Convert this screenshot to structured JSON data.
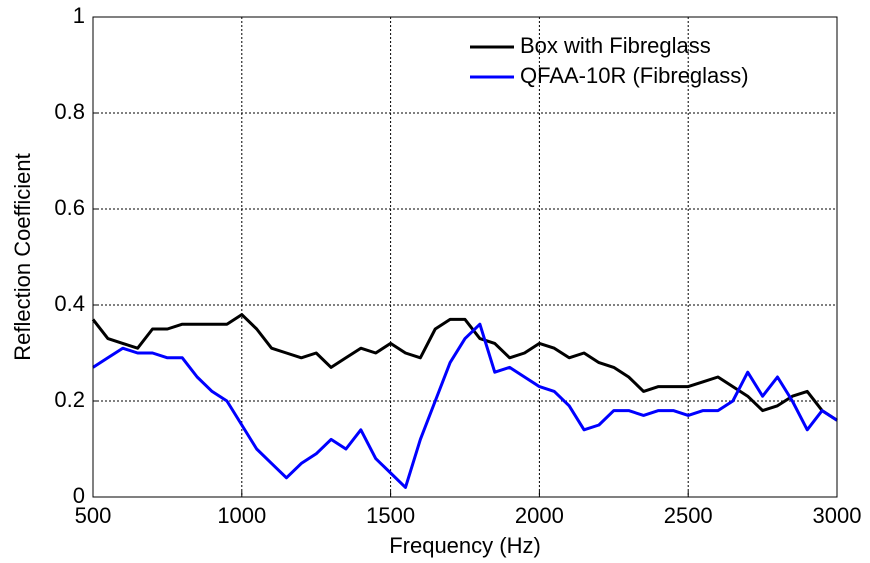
{
  "chart_data": {
    "type": "line",
    "x_label": "Frequency (Hz)",
    "y_label": "Reflection Coefficient",
    "x": [
      500,
      550,
      600,
      650,
      700,
      750,
      800,
      850,
      900,
      950,
      1000,
      1050,
      1100,
      1150,
      1200,
      1250,
      1300,
      1350,
      1400,
      1450,
      1500,
      1550,
      1600,
      1650,
      1700,
      1750,
      1800,
      1850,
      1900,
      1950,
      2000,
      2050,
      2100,
      2150,
      2200,
      2250,
      2300,
      2350,
      2400,
      2450,
      2500,
      2550,
      2600,
      2650,
      2700,
      2750,
      2800,
      2850,
      2900,
      2950,
      3000
    ],
    "series": [
      {
        "name": "Box with Fibreglass",
        "color": "#000000",
        "values": [
          0.37,
          0.33,
          0.32,
          0.31,
          0.35,
          0.35,
          0.36,
          0.36,
          0.36,
          0.36,
          0.38,
          0.35,
          0.31,
          0.3,
          0.29,
          0.3,
          0.27,
          0.29,
          0.31,
          0.3,
          0.32,
          0.3,
          0.29,
          0.35,
          0.37,
          0.37,
          0.33,
          0.32,
          0.29,
          0.3,
          0.32,
          0.31,
          0.29,
          0.3,
          0.28,
          0.27,
          0.25,
          0.22,
          0.23,
          0.23,
          0.23,
          0.24,
          0.25,
          0.23,
          0.21,
          0.18,
          0.19,
          0.21,
          0.22,
          0.18,
          0.16
        ]
      },
      {
        "name": "QFAA-10R (Fibreglass)",
        "color": "#0000ff",
        "values": [
          0.27,
          0.29,
          0.31,
          0.3,
          0.3,
          0.29,
          0.29,
          0.25,
          0.22,
          0.2,
          0.15,
          0.1,
          0.07,
          0.04,
          0.07,
          0.09,
          0.12,
          0.1,
          0.14,
          0.08,
          0.05,
          0.02,
          0.12,
          0.2,
          0.28,
          0.33,
          0.36,
          0.26,
          0.27,
          0.25,
          0.23,
          0.22,
          0.19,
          0.14,
          0.15,
          0.18,
          0.18,
          0.17,
          0.18,
          0.18,
          0.17,
          0.18,
          0.18,
          0.2,
          0.26,
          0.21,
          0.25,
          0.2,
          0.14,
          0.18,
          0.16
        ]
      }
    ],
    "xlim": [
      500,
      3000
    ],
    "ylim": [
      0,
      1
    ],
    "xticks": [
      500,
      1000,
      1500,
      2000,
      2500,
      3000
    ],
    "yticks": [
      0,
      0.2,
      0.4,
      0.6,
      0.8,
      1
    ],
    "grid": true,
    "legend": "upper right"
  }
}
